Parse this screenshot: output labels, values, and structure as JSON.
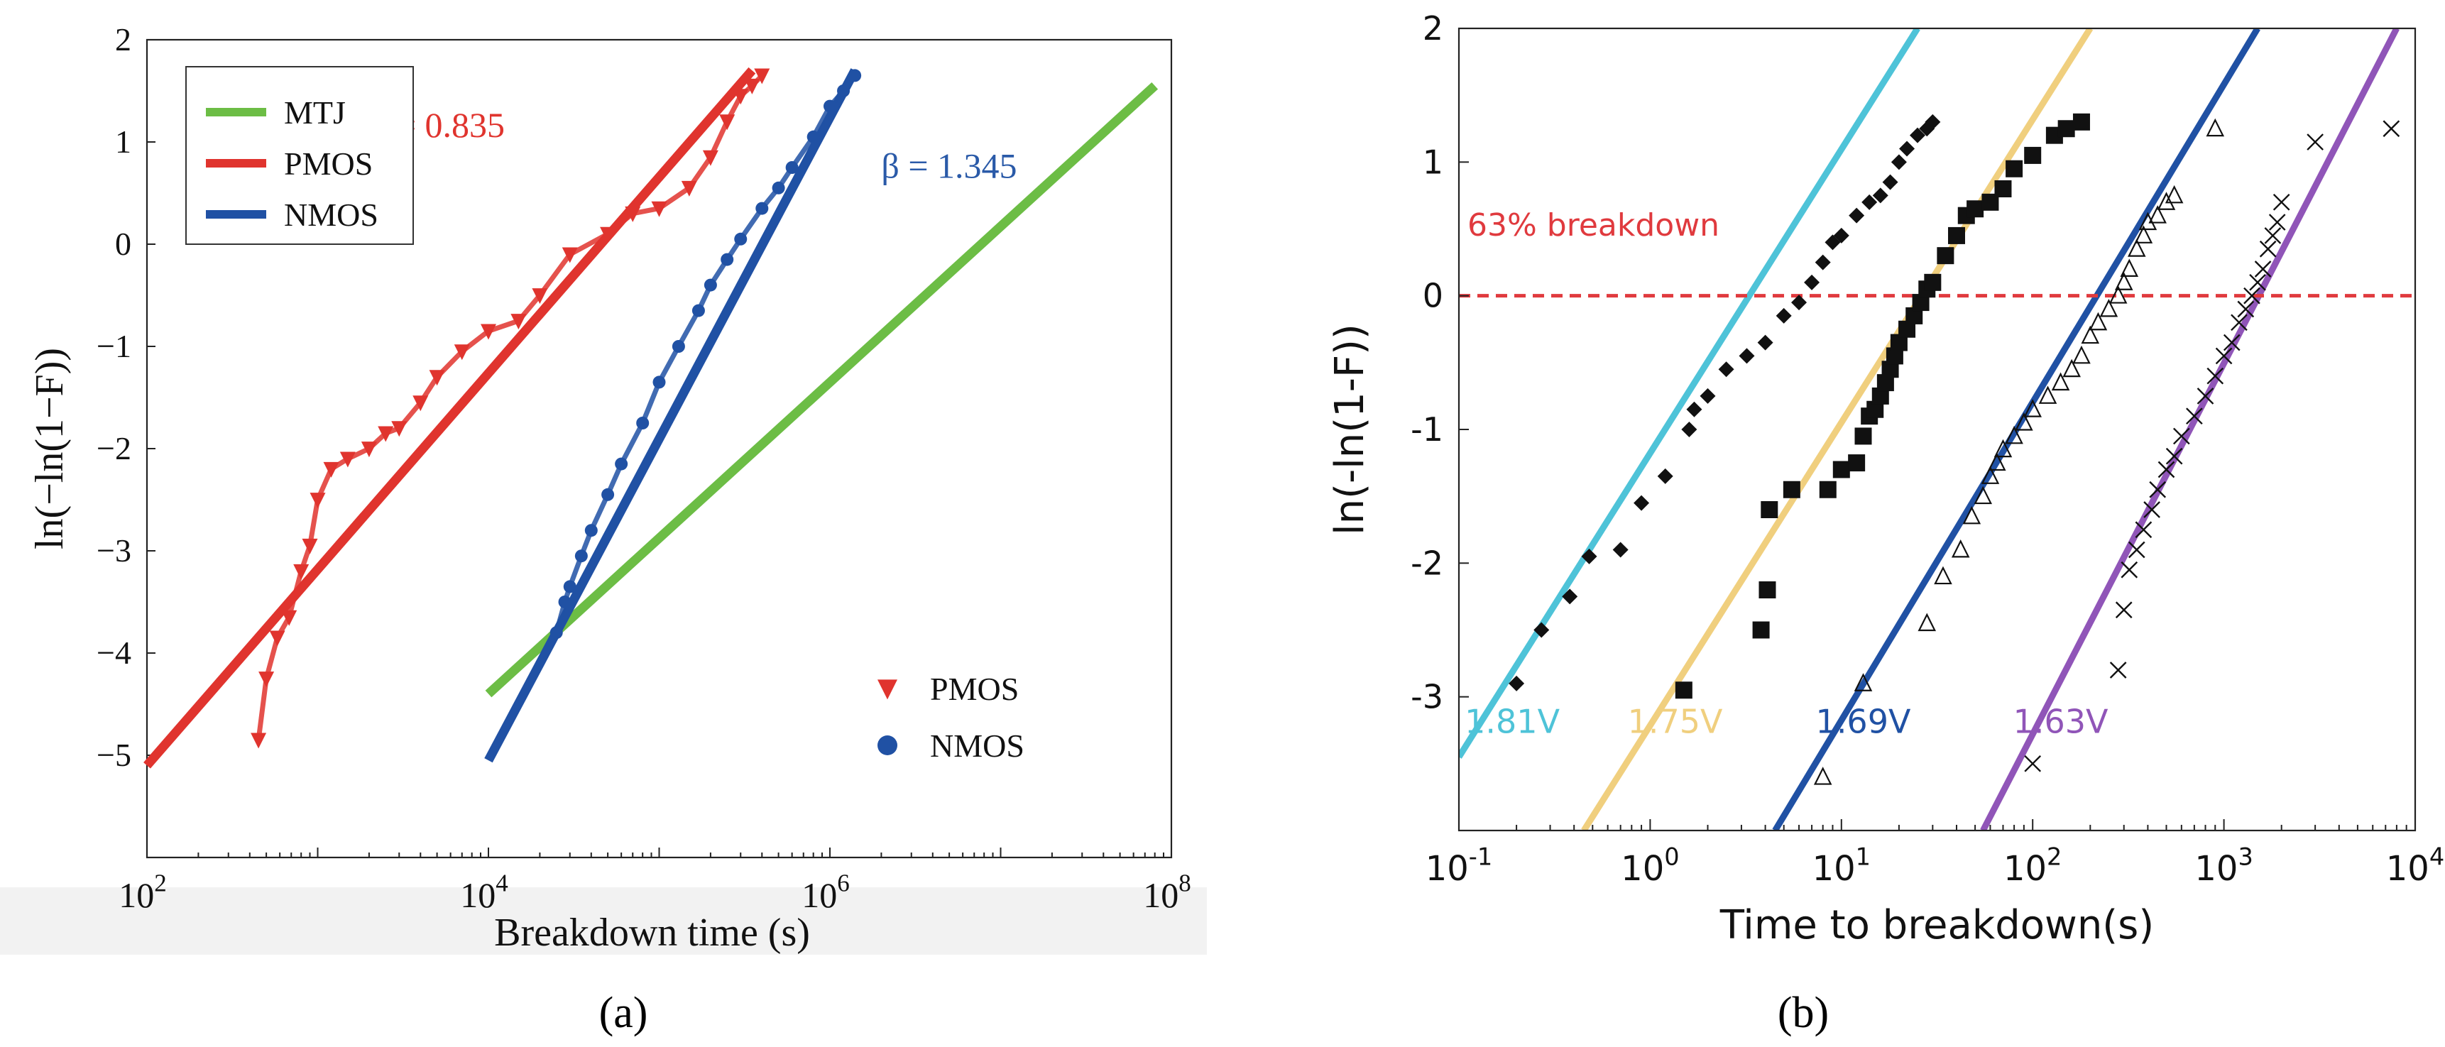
{
  "figure": {
    "panel_a_caption": "(a)",
    "panel_b_caption": "(b)"
  },
  "chart_data": [
    {
      "type": "line",
      "panel": "a",
      "xscale": "log",
      "xlabel": "Breakdown time (s)",
      "ylabel": "ln(−ln(1−F))",
      "xlim": [
        100,
        100000000
      ],
      "ylim": [
        -6,
        2
      ],
      "x_ticks": [
        100,
        10000,
        1000000,
        100000000
      ],
      "x_tick_labels": [
        [
          "10",
          "2"
        ],
        [
          "10",
          "4"
        ],
        [
          "10",
          "6"
        ],
        [
          "10",
          "8"
        ]
      ],
      "y_ticks": [
        2,
        1,
        0,
        -1,
        -2,
        -3,
        -4,
        -5
      ],
      "y_tick_labels": [
        "2",
        "1",
        "0",
        "−1",
        "−2",
        "−3",
        "−4",
        "−5"
      ],
      "grid": false,
      "legend": {
        "placement": "top-left",
        "entries": [
          {
            "label": "MTJ",
            "color": "#6cbd45"
          },
          {
            "label": "PMOS",
            "color": "#e0342e"
          },
          {
            "label": "NMOS",
            "color": "#2051a4"
          }
        ]
      },
      "marker_legend": {
        "placement": "bottom-right",
        "entries": [
          {
            "label": "PMOS",
            "marker": "triangle-down",
            "color": "#e0342e"
          },
          {
            "label": "NMOS",
            "marker": "circle",
            "color": "#2051a4"
          }
        ]
      },
      "annotations": [
        {
          "text": "β  = 0.835",
          "color": "#e0342e",
          "x": 2000,
          "y": 1.05
        },
        {
          "text": "β = 1.345",
          "color": "#2a5aa8",
          "x": 2000000,
          "y": 0.65
        }
      ],
      "series": [
        {
          "name": "MTJ",
          "kind": "fit",
          "color": "#6cbd45",
          "x": [
            10000,
            80000000
          ],
          "y": [
            -4.4,
            1.55
          ]
        },
        {
          "name": "PMOS",
          "kind": "fit",
          "color": "#e0342e",
          "x": [
            100,
            350000
          ],
          "y": [
            -5.1,
            1.7
          ]
        },
        {
          "name": "NMOS",
          "kind": "fit",
          "color": "#2051a4",
          "x": [
            10000,
            1400000
          ],
          "y": [
            -5.05,
            1.7
          ]
        },
        {
          "name": "PMOS",
          "kind": "data",
          "marker": "triangle-down",
          "color": "#e0342e",
          "x": [
            450,
            500,
            580,
            680,
            800,
            900,
            1000,
            1200,
            1500,
            2000,
            2500,
            3000,
            4000,
            5000,
            7000,
            10000,
            15000,
            20000,
            30000,
            50000,
            70000,
            100000,
            150000,
            200000,
            250000,
            300000,
            350000,
            400000
          ],
          "y": [
            -4.85,
            -4.25,
            -3.85,
            -3.65,
            -3.2,
            -2.95,
            -2.5,
            -2.2,
            -2.1,
            -2.0,
            -1.85,
            -1.8,
            -1.55,
            -1.3,
            -1.05,
            -0.85,
            -0.75,
            -0.5,
            -0.1,
            0.1,
            0.3,
            0.35,
            0.55,
            0.85,
            1.2,
            1.45,
            1.55,
            1.65
          ]
        },
        {
          "name": "NMOS",
          "kind": "data",
          "marker": "circle",
          "color": "#2051a4",
          "x": [
            25000,
            28000,
            30000,
            35000,
            40000,
            50000,
            60000,
            80000,
            100000,
            130000,
            170000,
            200000,
            250000,
            300000,
            400000,
            500000,
            600000,
            800000,
            1000000,
            1200000,
            1400000
          ],
          "y": [
            -3.8,
            -3.5,
            -3.35,
            -3.05,
            -2.8,
            -2.45,
            -2.15,
            -1.75,
            -1.35,
            -1.0,
            -0.65,
            -0.4,
            -0.15,
            0.05,
            0.35,
            0.55,
            0.75,
            1.05,
            1.35,
            1.5,
            1.65
          ]
        }
      ]
    },
    {
      "type": "line",
      "panel": "b",
      "xscale": "log",
      "xlabel": "Time to breakdown(s)",
      "ylabel": "ln(-ln(1-F))",
      "xlim": [
        0.1,
        10000
      ],
      "ylim": [
        -4,
        2
      ],
      "x_ticks": [
        0.1,
        1,
        10,
        100,
        1000,
        10000
      ],
      "x_tick_labels": [
        [
          "10",
          "-1"
        ],
        [
          "10",
          "0"
        ],
        [
          "10",
          "1"
        ],
        [
          "10",
          "2"
        ],
        [
          "10",
          "3"
        ],
        [
          "10",
          "4"
        ]
      ],
      "y_ticks": [
        2,
        1,
        0,
        -1,
        -2,
        -3
      ],
      "y_tick_labels": [
        "2",
        "1",
        "0",
        "-1",
        "-2",
        "-3"
      ],
      "grid": false,
      "reference_line": {
        "y": 0,
        "label": "63% breakdown",
        "color": "#e03a3e",
        "style": "dashed"
      },
      "series": [
        {
          "name": "1.81V",
          "kind": "fit",
          "color": "#4ec3d8",
          "x": [
            0.1,
            25
          ],
          "y": [
            -3.45,
            2.0
          ],
          "label_x": 0.19,
          "label_y": -3.27
        },
        {
          "name": "1.75V",
          "kind": "fit",
          "color": "#f0cf7e",
          "x": [
            0.45,
            200
          ],
          "y": [
            -4.0,
            2.0
          ],
          "label_x": 1.35,
          "label_y": -3.27
        },
        {
          "name": "1.69V",
          "kind": "fit",
          "color": "#2051a4",
          "x": [
            4.5,
            1500
          ],
          "y": [
            -4.0,
            2.0
          ],
          "label_x": 13,
          "label_y": -3.27
        },
        {
          "name": "1.63V",
          "kind": "fit",
          "color": "#9055b8",
          "x": [
            55,
            8000
          ],
          "y": [
            -4.0,
            2.0
          ],
          "label_x": 140,
          "label_y": -3.27
        },
        {
          "name": "1.81V",
          "kind": "data",
          "marker": "diamond",
          "color": "#111111",
          "x": [
            0.2,
            0.27,
            0.38,
            0.48,
            0.7,
            0.9,
            1.2,
            1.6,
            1.7,
            2.0,
            2.5,
            3.2,
            4.0,
            5.0,
            6.0,
            7.0,
            8.0,
            9.0,
            10,
            12,
            14,
            16,
            18,
            20,
            22,
            25,
            28,
            30
          ],
          "y": [
            -2.9,
            -2.5,
            -2.25,
            -1.95,
            -1.9,
            -1.55,
            -1.35,
            -1.0,
            -0.85,
            -0.75,
            -0.55,
            -0.45,
            -0.35,
            -0.15,
            -0.05,
            0.1,
            0.25,
            0.4,
            0.45,
            0.6,
            0.7,
            0.75,
            0.85,
            1.0,
            1.1,
            1.2,
            1.25,
            1.3
          ]
        },
        {
          "name": "1.75V",
          "kind": "data",
          "marker": "square",
          "color": "#111111",
          "x": [
            1.5,
            3.8,
            4.1,
            4.2,
            5.5,
            8.5,
            10,
            12,
            13,
            14,
            15,
            16,
            17,
            18,
            19,
            20,
            22,
            24,
            26,
            28,
            30,
            35,
            40,
            45,
            50,
            60,
            70,
            80,
            100,
            130,
            150,
            180
          ],
          "y": [
            -2.95,
            -2.5,
            -2.2,
            -1.6,
            -1.45,
            -1.45,
            -1.3,
            -1.25,
            -1.05,
            -0.9,
            -0.85,
            -0.75,
            -0.65,
            -0.55,
            -0.45,
            -0.35,
            -0.25,
            -0.15,
            -0.05,
            0.05,
            0.1,
            0.3,
            0.45,
            0.6,
            0.65,
            0.7,
            0.8,
            0.95,
            1.05,
            1.2,
            1.25,
            1.3
          ]
        },
        {
          "name": "1.69V",
          "kind": "data",
          "marker": "triangle-up",
          "color": "#111111",
          "x": [
            8,
            13,
            28,
            34,
            42,
            48,
            55,
            60,
            65,
            70,
            80,
            90,
            100,
            120,
            140,
            160,
            180,
            200,
            220,
            250,
            280,
            300,
            320,
            350,
            380,
            400,
            450,
            500,
            550,
            900
          ],
          "y": [
            -3.6,
            -2.9,
            -2.45,
            -2.1,
            -1.9,
            -1.65,
            -1.5,
            -1.35,
            -1.25,
            -1.15,
            -1.05,
            -0.95,
            -0.85,
            -0.75,
            -0.65,
            -0.55,
            -0.45,
            -0.3,
            -0.2,
            -0.1,
            0.0,
            0.1,
            0.2,
            0.35,
            0.45,
            0.55,
            0.6,
            0.7,
            0.75,
            1.25
          ]
        },
        {
          "name": "1.63V",
          "kind": "data",
          "marker": "x",
          "color": "#111111",
          "x": [
            100,
            280,
            300,
            320,
            350,
            380,
            420,
            450,
            500,
            550,
            600,
            700,
            800,
            900,
            1000,
            1100,
            1200,
            1300,
            1400,
            1500,
            1600,
            1700,
            1800,
            1900,
            2000,
            3000,
            7500
          ],
          "y": [
            -3.5,
            -2.8,
            -2.35,
            -2.05,
            -1.9,
            -1.75,
            -1.6,
            -1.45,
            -1.3,
            -1.2,
            -1.05,
            -0.9,
            -0.75,
            -0.6,
            -0.45,
            -0.35,
            -0.2,
            -0.1,
            0.0,
            0.1,
            0.2,
            0.35,
            0.45,
            0.55,
            0.7,
            1.15,
            1.25
          ]
        }
      ]
    }
  ]
}
